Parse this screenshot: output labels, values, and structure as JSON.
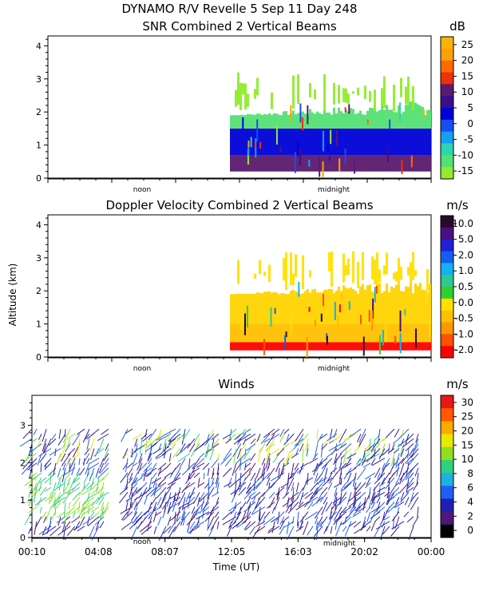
{
  "header": {
    "title_line": "DYNAMO R/V Revelle    5 Sep 11 Day 248"
  },
  "chart_data": [
    {
      "id": "snr",
      "type": "heatmap",
      "title": "SNR Combined 2 Vertical Beams",
      "ylabel": "",
      "unit": "dB",
      "ylim": [
        0,
        4.3
      ],
      "yticks": [
        "0",
        "1",
        "2",
        "3",
        "4"
      ],
      "day_labels": [
        "noon",
        "midnight"
      ],
      "data_start_fraction": 0.5,
      "colorbar": {
        "labels": [
          "25",
          "20",
          "15",
          "10",
          "5",
          "0",
          "-5",
          "-10",
          "-15"
        ],
        "colors": [
          "#fcb402",
          "#fca104",
          "#ff6a00",
          "#f03008",
          "#5a1a6e",
          "#3a0f8c",
          "#0000d8",
          "#1a4cf0",
          "#14a0f0",
          "#30d4b0",
          "#54e074",
          "#90ec2c"
        ]
      },
      "layers": [
        {
          "name": "surface",
          "alt_from": 0.2,
          "alt_to": 0.7,
          "color": "#5a1a6e"
        },
        {
          "name": "low",
          "alt_from": 0.7,
          "alt_to": 1.5,
          "color": "#0000d8"
        },
        {
          "name": "mid",
          "alt_from": 1.5,
          "alt_to": 1.9,
          "color": "#54e074"
        },
        {
          "name": "upper",
          "alt_from": 2.0,
          "alt_to": 3.2,
          "color": "#90ec2c"
        }
      ]
    },
    {
      "id": "doppler",
      "type": "heatmap",
      "title": "Doppler Velocity Combined 2 Vertical Beams",
      "ylabel": "Altitude (km)",
      "unit": "m/s",
      "ylim": [
        0,
        4.3
      ],
      "yticks": [
        "0",
        "1",
        "2",
        "3",
        "4"
      ],
      "day_labels": [
        "noon",
        "midnight"
      ],
      "data_start_fraction": 0.5,
      "colorbar": {
        "labels": [
          "10.0",
          "5.0",
          "2.0",
          "1.0",
          "0.5",
          "0.0",
          "-0.5",
          "-1.0",
          "-2.0"
        ],
        "colors": [
          "#2a0a2a",
          "#4a1080",
          "#2020d8",
          "#1060f0",
          "#14b0f0",
          "#30c890",
          "#30d030",
          "#ffe000",
          "#ffc000",
          "#ff9800",
          "#ff5000",
          "#ff0000"
        ]
      },
      "layers": [
        {
          "name": "surface",
          "alt_from": 0.2,
          "alt_to": 0.45,
          "color": "#ff0000"
        },
        {
          "name": "low",
          "alt_from": 0.45,
          "alt_to": 1.0,
          "color": "#ffc000"
        },
        {
          "name": "mid",
          "alt_from": 1.0,
          "alt_to": 1.9,
          "color": "#ffd400"
        },
        {
          "name": "upper",
          "alt_from": 2.0,
          "alt_to": 3.2,
          "color": "#ffe000"
        }
      ]
    },
    {
      "id": "winds",
      "type": "scatter",
      "title": "Winds",
      "xlabel": "Time (UT)",
      "ylabel": "",
      "unit": "m/s",
      "ylim": [
        0,
        3.8
      ],
      "yticks": [
        "0",
        "1",
        "2",
        "3"
      ],
      "day_labels": [
        "noon",
        "midnight"
      ],
      "xticks": [
        "00:10",
        "04:08",
        "08:07",
        "12:05",
        "16:03",
        "20:02",
        "00:00"
      ],
      "colorbar": {
        "labels": [
          "30",
          "25",
          "20",
          "15",
          "10",
          "8",
          "6",
          "4",
          "2",
          "0"
        ],
        "colors": [
          "#e81818",
          "#ff5a00",
          "#ffaa00",
          "#e8e800",
          "#90e020",
          "#30d080",
          "#20b0e0",
          "#2060f0",
          "#2020b0",
          "#4a1a7a",
          "#000000"
        ]
      }
    }
  ]
}
